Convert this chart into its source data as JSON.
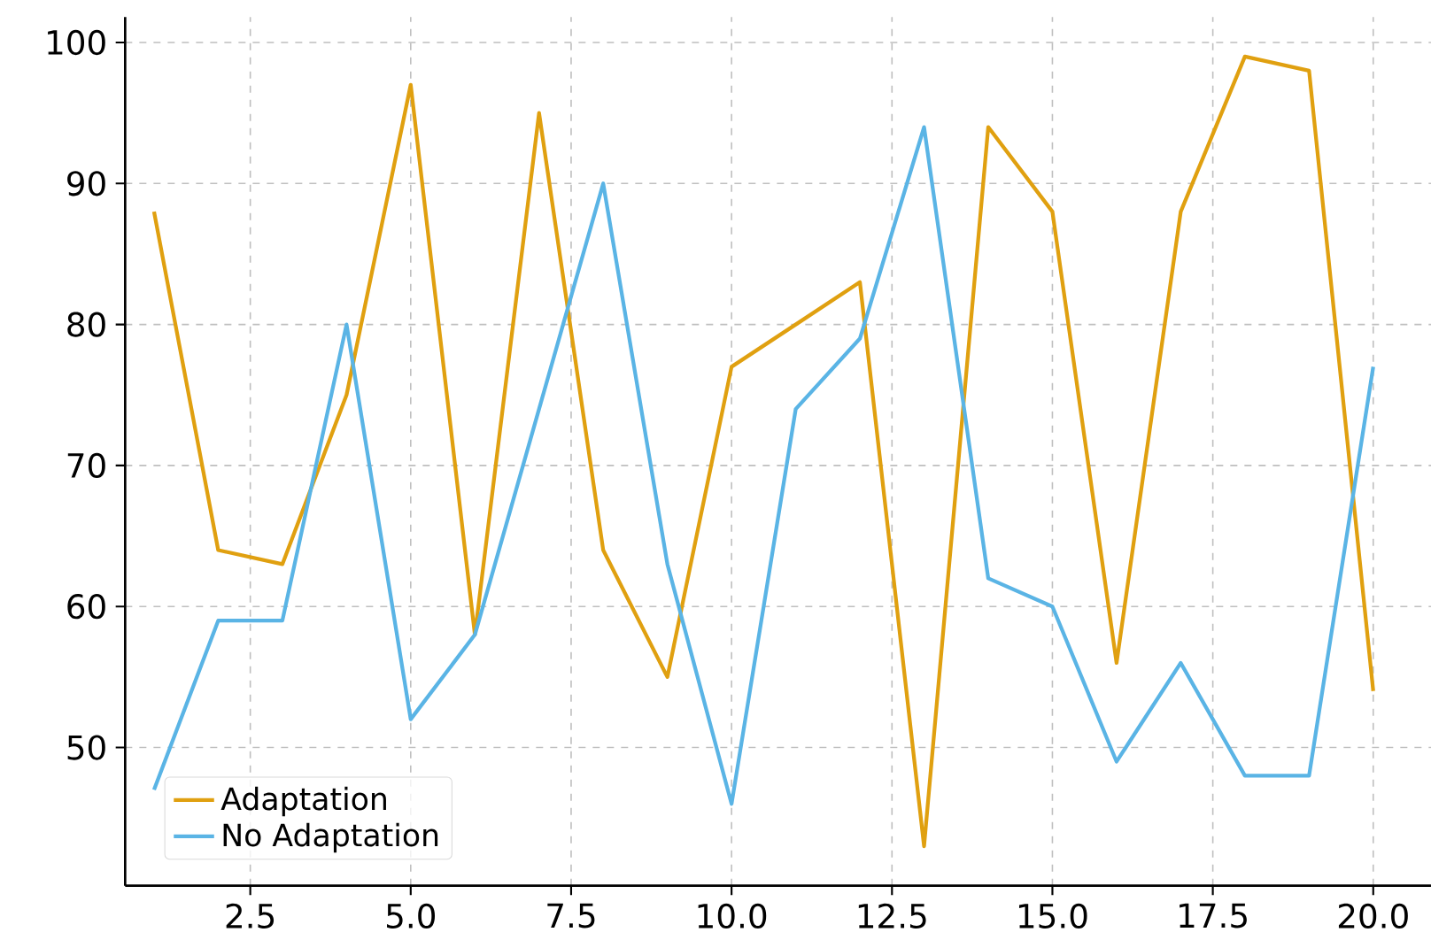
{
  "chart_data": {
    "type": "line",
    "x": [
      1,
      2,
      3,
      4,
      5,
      6,
      7,
      8,
      9,
      10,
      11,
      12,
      13,
      14,
      15,
      16,
      17,
      18,
      19,
      20
    ],
    "series": [
      {
        "name": "Adaptation",
        "color": "#e0a010",
        "values": [
          88,
          64,
          63,
          75,
          97,
          58,
          95,
          64,
          55,
          77,
          80,
          83,
          43,
          94,
          88,
          56,
          88,
          99,
          98,
          54
        ]
      },
      {
        "name": "No Adaptation",
        "color": "#5ab4e5",
        "values": [
          47,
          59,
          59,
          80,
          52,
          58,
          74,
          90,
          63,
          46,
          74,
          79,
          94,
          62,
          60,
          49,
          56,
          48,
          48,
          77
        ]
      }
    ],
    "xlim": [
      0.55,
      20.9
    ],
    "ylim": [
      40.2,
      101.8
    ],
    "xticks": [
      {
        "value": 2.5,
        "label": "2.5"
      },
      {
        "value": 5,
        "label": "5.0"
      },
      {
        "value": 7.5,
        "label": "7.5"
      },
      {
        "value": 10,
        "label": "10.0"
      },
      {
        "value": 12.5,
        "label": "12.5"
      },
      {
        "value": 15,
        "label": "15.0"
      },
      {
        "value": 17.5,
        "label": "17.5"
      },
      {
        "value": 20,
        "label": "20.0"
      }
    ],
    "yticks": [
      50,
      60,
      70,
      80,
      90,
      100
    ],
    "grid": true,
    "legend": "bottom left",
    "marker": "none",
    "line_style": "solid"
  }
}
